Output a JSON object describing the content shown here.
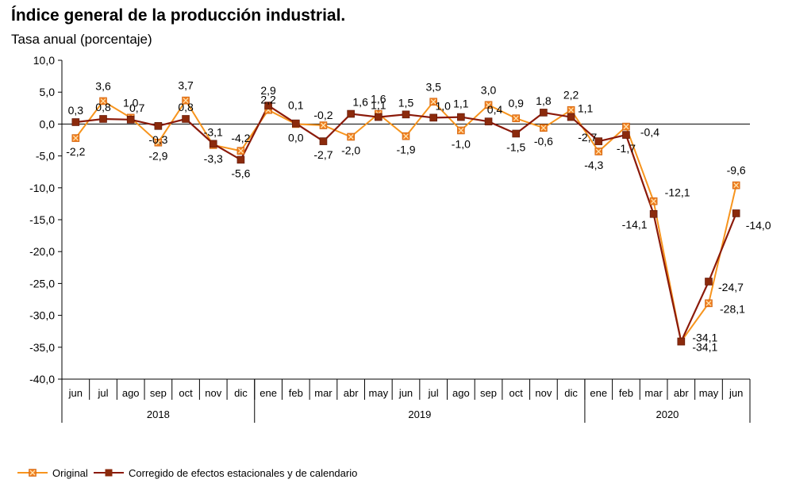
{
  "chart_data": {
    "type": "line",
    "title": "Índice general de la producción industrial.",
    "subtitle": "Tasa anual (porcentaje)",
    "ylim": [
      -40,
      10
    ],
    "yticks": [
      10,
      5,
      0,
      -5,
      -10,
      -15,
      -20,
      -25,
      -30,
      -35,
      -40
    ],
    "ytick_labels": [
      "10,0",
      "5,0",
      "0,0",
      "-5,0",
      "-10,0",
      "-15,0",
      "-20,0",
      "-25,0",
      "-30,0",
      "-35,0",
      "-40,0"
    ],
    "categories": [
      "jun",
      "jul",
      "ago",
      "sep",
      "oct",
      "nov",
      "dic",
      "ene",
      "feb",
      "mar",
      "abr",
      "may",
      "jun",
      "jul",
      "ago",
      "sep",
      "oct",
      "nov",
      "dic",
      "ene",
      "feb",
      "mar",
      "abr",
      "may",
      "jun"
    ],
    "years": [
      {
        "label": "2018",
        "start": 0,
        "end": 6
      },
      {
        "label": "2019",
        "start": 7,
        "end": 18
      },
      {
        "label": "2020",
        "start": 19,
        "end": 24
      }
    ],
    "legend_position": "bottom-left",
    "grid": false,
    "series": [
      {
        "name": "Original",
        "color": "#F7941D",
        "marker_color": "#F07E1E",
        "marker": "square-x",
        "values": [
          -2.2,
          3.6,
          1.0,
          -2.9,
          3.7,
          -3.3,
          -4.2,
          2.2,
          0.0,
          -0.2,
          -2.0,
          1.6,
          -1.9,
          3.5,
          -1.0,
          3.0,
          0.9,
          -0.6,
          2.2,
          -4.3,
          -0.4,
          -12.1,
          -34.1,
          -28.1,
          -9.6
        ],
        "labels": [
          "-2,2",
          "3,6",
          "1,0",
          "-2,9",
          "3,7",
          "-3,3",
          "-4,2",
          "2,2",
          "0,0",
          "-0,2",
          "-2,0",
          "1,6",
          "-1,9",
          "3,5",
          "-1,0",
          "3,0",
          "0,9",
          "-0,6",
          "2,2",
          "-4,3",
          "-0,4",
          "-12,1",
          "-34,1",
          "-28,1",
          "-9,6"
        ]
      },
      {
        "name": "Corregido de efectos estacionales y de calendario",
        "color": "#8B1A0A",
        "marker_color": "#8B2A0C",
        "marker": "square",
        "values": [
          0.3,
          0.8,
          0.7,
          -0.3,
          0.8,
          -3.1,
          -5.6,
          2.9,
          0.1,
          -2.7,
          1.6,
          1.1,
          1.5,
          1.0,
          1.1,
          0.4,
          -1.5,
          1.8,
          1.1,
          -2.7,
          -1.7,
          -14.1,
          -34.1,
          -24.7,
          -14.0
        ],
        "labels": [
          "0,3",
          "0,8",
          "0,7",
          "-0,3",
          "0,8",
          "-3,1",
          "-5,6",
          "2,9",
          "0,1",
          "-2,7",
          "1,6",
          "1,1",
          "1,5",
          "1,0",
          "1,1",
          "0,4",
          "-1,5",
          "1,8",
          "1,1",
          "-2,7",
          "-1,7",
          "-14,1",
          "-34,1",
          "-24,7",
          "-14,0"
        ]
      }
    ]
  }
}
